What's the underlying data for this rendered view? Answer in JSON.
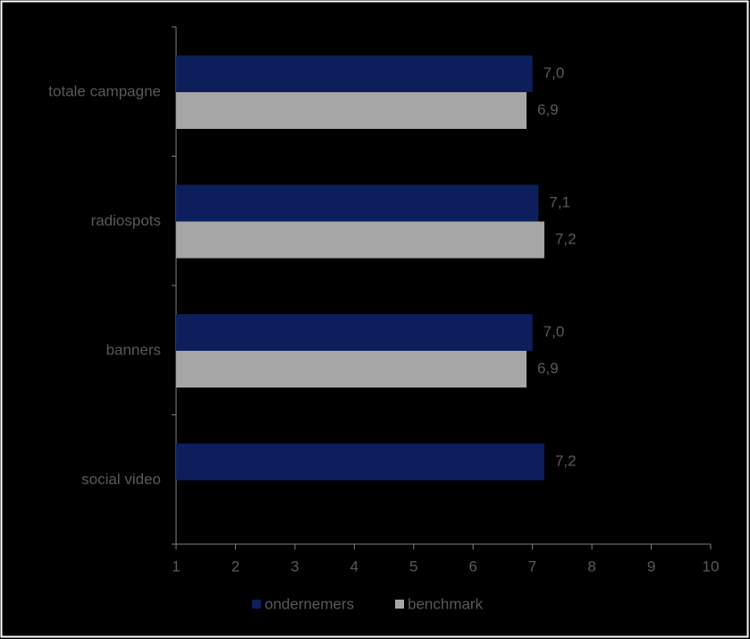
{
  "chart_data": {
    "type": "bar",
    "orientation": "horizontal",
    "categories": [
      "totale campagne",
      "radiospots",
      "banners",
      "social video"
    ],
    "series": [
      {
        "name": "ondernemers",
        "color": "#0c1f5c",
        "values": [
          7.0,
          7.1,
          7.0,
          7.2
        ],
        "value_labels": [
          "7,0",
          "7,1",
          "7,0",
          "7,2"
        ]
      },
      {
        "name": "benchmark",
        "color": "#a6a6a6",
        "values": [
          6.9,
          7.2,
          6.9,
          null
        ],
        "value_labels": [
          "6,9",
          "7,2",
          "6,9",
          null
        ]
      }
    ],
    "xlim": [
      1,
      10
    ],
    "xticks": [
      1,
      2,
      3,
      4,
      5,
      6,
      7,
      8,
      9,
      10
    ],
    "legend": "bottom"
  }
}
